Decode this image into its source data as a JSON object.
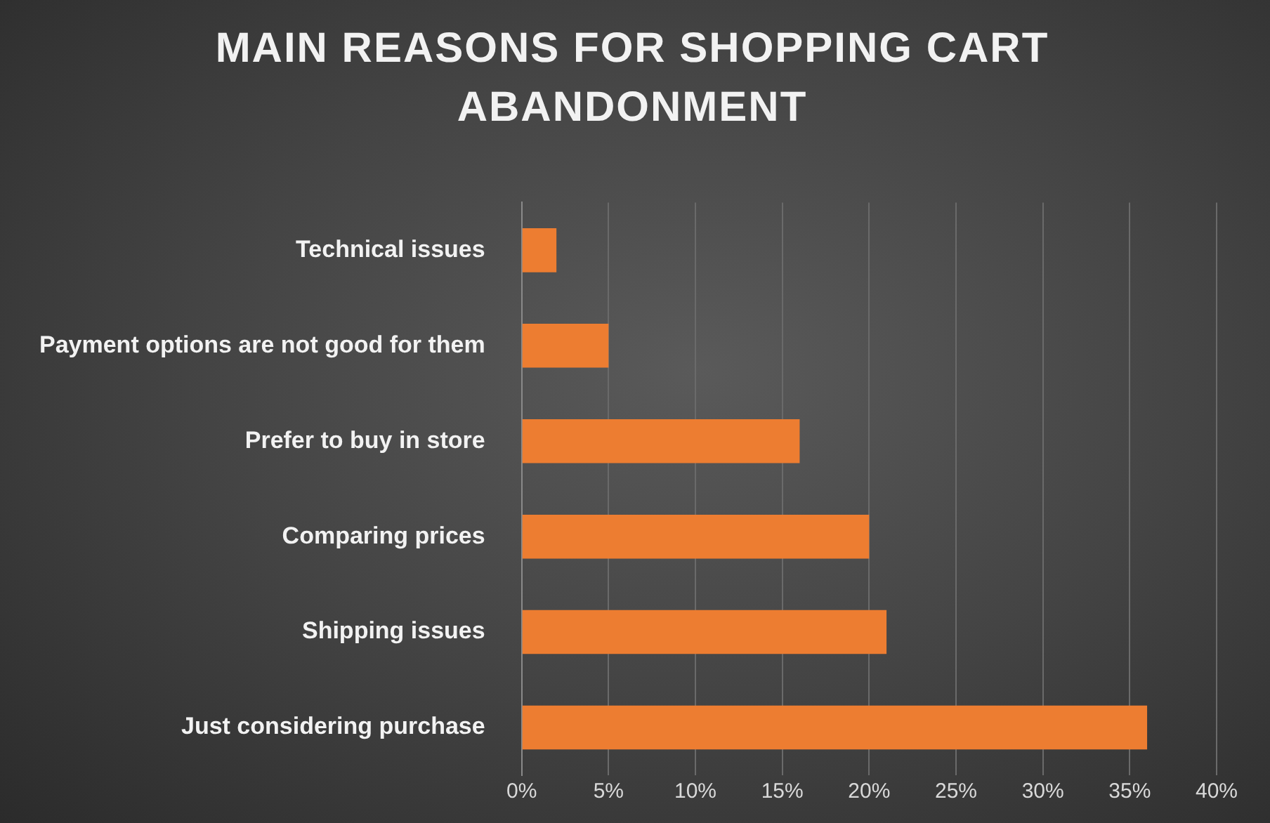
{
  "chart_data": {
    "type": "bar",
    "orientation": "horizontal",
    "title": "MAIN REASONS FOR SHOPPING CART ABANDONMENT",
    "categories": [
      "Technical issues",
      "Payment options are not good for them",
      "Prefer to buy in store",
      "Comparing prices",
      "Shipping issues",
      "Just considering purchase"
    ],
    "values": [
      2,
      5,
      16,
      20,
      21,
      36
    ],
    "color": "#ed7d31",
    "xlim": [
      0,
      40
    ],
    "xticks": [
      {
        "value": 0,
        "label": "0%"
      },
      {
        "value": 5,
        "label": "5%"
      },
      {
        "value": 10,
        "label": "10%"
      },
      {
        "value": 15,
        "label": "15%"
      },
      {
        "value": 20,
        "label": "20%"
      },
      {
        "value": 25,
        "label": "25%"
      },
      {
        "value": 30,
        "label": "30%"
      },
      {
        "value": 35,
        "label": "35%"
      },
      {
        "value": 40,
        "label": "40%"
      }
    ],
    "grid": "x"
  }
}
